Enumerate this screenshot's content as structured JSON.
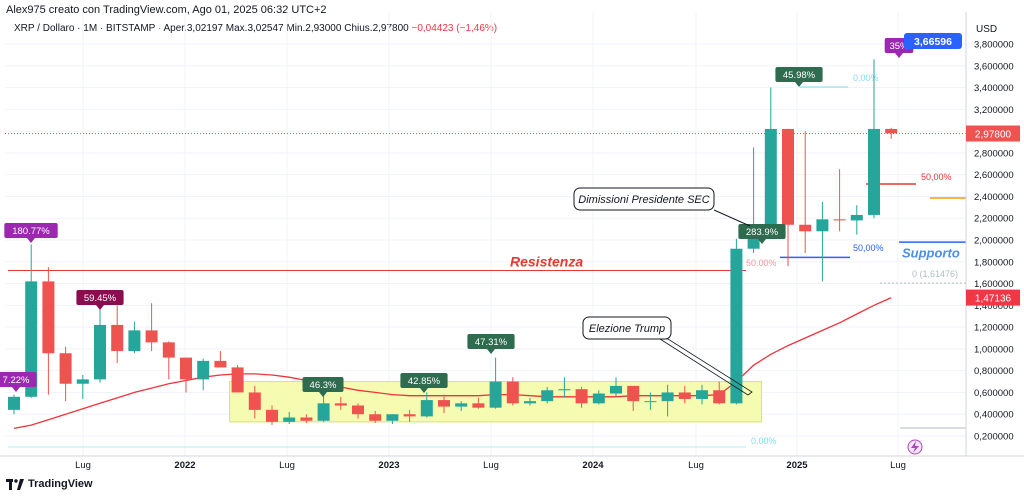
{
  "header": {
    "title": "Alex975 creato con TradingView.com, Ago 01, 2025 06:32 UTC+2",
    "legend": {
      "symbol": "XRP / Dollaro · 1M · BITSTAMP",
      "open_label": "O",
      "open": "Aper.3,02197",
      "high_label": "H",
      "high": "Max.3,02547",
      "low_label": "L",
      "low": "Min.2,93000",
      "close_label": "C",
      "close": "Chius.2,97800",
      "change": "−0,04423 (−1,46%)"
    }
  },
  "footer": {
    "brand": "TradingView"
  },
  "axis": {
    "currency": "USD",
    "y_ticks": [
      "3,800000",
      "3,600000",
      "3,400000",
      "3,200000",
      "3,000000",
      "2,800000",
      "2,600000",
      "2,400000",
      "2,200000",
      "2,000000",
      "1,800000",
      "1,600000",
      "1,400000",
      "1,200000",
      "1,000000",
      "0,800000",
      "0,600000",
      "0,400000",
      "0,200000"
    ],
    "x_ticks": [
      "Lug",
      "2022",
      "Lug",
      "2023",
      "Lug",
      "2024",
      "Lug",
      "2025",
      "Lug"
    ],
    "price_badges": {
      "high": "3,66596",
      "last": "2,97800",
      "ma": "1,47136"
    }
  },
  "colors": {
    "up": "#26a69a",
    "down": "#ef5350",
    "ma": "#f0323c",
    "zone": "#f5fbb0",
    "purple": "#9c27b0",
    "green_label": "#2e6b4f"
  },
  "annotations": {
    "resistance": "Resistenza",
    "support": "Supporto",
    "sec_callout": "Dimissioni Presidente SEC",
    "trump_callout": "Elezione Trump",
    "pct_180": "180.77%",
    "pct_72": "7.22%",
    "pct_59": "59.45%",
    "pct_46": "46.3%",
    "pct_42": "42.85%",
    "pct_47": "47.31%",
    "pct_283": "283.9%",
    "pct_45": "45.98%",
    "pct_35": "35%",
    "fib_0_top": "0.00%",
    "fib_50_a": "50,00%",
    "fib_50_b": "50,00%",
    "fib_50_c": "50.00%",
    "fib_0_mid": "0 (1,61476)",
    "fib_0_bottom": "0.00%"
  },
  "chart_data": {
    "type": "candlestick",
    "y_range": [
      0.1,
      3.9
    ],
    "candles": [
      {
        "o": 0.44,
        "h": 0.58,
        "l": 0.4,
        "c": 0.56
      },
      {
        "o": 0.56,
        "h": 1.96,
        "l": 0.55,
        "c": 1.62
      },
      {
        "o": 1.62,
        "h": 1.75,
        "l": 0.58,
        "c": 0.96
      },
      {
        "o": 0.96,
        "h": 1.02,
        "l": 0.52,
        "c": 0.68
      },
      {
        "o": 0.68,
        "h": 0.76,
        "l": 0.54,
        "c": 0.72
      },
      {
        "o": 0.72,
        "h": 1.36,
        "l": 0.69,
        "c": 1.22
      },
      {
        "o": 1.22,
        "h": 1.4,
        "l": 0.87,
        "c": 0.98
      },
      {
        "o": 0.98,
        "h": 1.25,
        "l": 0.96,
        "c": 1.17
      },
      {
        "o": 1.17,
        "h": 1.42,
        "l": 0.98,
        "c": 1.06
      },
      {
        "o": 1.06,
        "h": 1.07,
        "l": 0.72,
        "c": 0.92
      },
      {
        "o": 0.92,
        "h": 0.92,
        "l": 0.6,
        "c": 0.72
      },
      {
        "o": 0.72,
        "h": 0.91,
        "l": 0.62,
        "c": 0.89
      },
      {
        "o": 0.89,
        "h": 0.98,
        "l": 0.86,
        "c": 0.83
      },
      {
        "o": 0.83,
        "h": 0.85,
        "l": 0.6,
        "c": 0.6
      },
      {
        "o": 0.6,
        "h": 0.66,
        "l": 0.36,
        "c": 0.44
      },
      {
        "o": 0.44,
        "h": 0.48,
        "l": 0.3,
        "c": 0.33
      },
      {
        "o": 0.33,
        "h": 0.42,
        "l": 0.31,
        "c": 0.37
      },
      {
        "o": 0.37,
        "h": 0.4,
        "l": 0.32,
        "c": 0.34
      },
      {
        "o": 0.34,
        "h": 0.58,
        "l": 0.33,
        "c": 0.5
      },
      {
        "o": 0.5,
        "h": 0.56,
        "l": 0.44,
        "c": 0.48
      },
      {
        "o": 0.48,
        "h": 0.5,
        "l": 0.36,
        "c": 0.4
      },
      {
        "o": 0.4,
        "h": 0.43,
        "l": 0.32,
        "c": 0.34
      },
      {
        "o": 0.34,
        "h": 0.4,
        "l": 0.31,
        "c": 0.4
      },
      {
        "o": 0.4,
        "h": 0.44,
        "l": 0.33,
        "c": 0.38
      },
      {
        "o": 0.38,
        "h": 0.6,
        "l": 0.37,
        "c": 0.53
      },
      {
        "o": 0.53,
        "h": 0.58,
        "l": 0.41,
        "c": 0.47
      },
      {
        "o": 0.47,
        "h": 0.52,
        "l": 0.43,
        "c": 0.5
      },
      {
        "o": 0.5,
        "h": 0.55,
        "l": 0.45,
        "c": 0.46
      },
      {
        "o": 0.46,
        "h": 0.92,
        "l": 0.45,
        "c": 0.7
      },
      {
        "o": 0.7,
        "h": 0.74,
        "l": 0.48,
        "c": 0.5
      },
      {
        "o": 0.5,
        "h": 0.55,
        "l": 0.48,
        "c": 0.52
      },
      {
        "o": 0.52,
        "h": 0.65,
        "l": 0.5,
        "c": 0.62
      },
      {
        "o": 0.62,
        "h": 0.74,
        "l": 0.55,
        "c": 0.63
      },
      {
        "o": 0.63,
        "h": 0.65,
        "l": 0.46,
        "c": 0.5
      },
      {
        "o": 0.5,
        "h": 0.62,
        "l": 0.49,
        "c": 0.59
      },
      {
        "o": 0.59,
        "h": 0.74,
        "l": 0.56,
        "c": 0.66
      },
      {
        "o": 0.66,
        "h": 0.66,
        "l": 0.43,
        "c": 0.52
      },
      {
        "o": 0.52,
        "h": 0.6,
        "l": 0.44,
        "c": 0.52
      },
      {
        "o": 0.52,
        "h": 0.67,
        "l": 0.38,
        "c": 0.6
      },
      {
        "o": 0.6,
        "h": 0.66,
        "l": 0.5,
        "c": 0.54
      },
      {
        "o": 0.54,
        "h": 0.67,
        "l": 0.49,
        "c": 0.62
      },
      {
        "o": 0.62,
        "h": 0.7,
        "l": 0.49,
        "c": 0.5
      },
      {
        "o": 0.5,
        "h": 2.01,
        "l": 0.49,
        "c": 1.92
      },
      {
        "o": 1.92,
        "h": 2.85,
        "l": 1.88,
        "c": 2.05
      },
      {
        "o": 2.05,
        "h": 3.4,
        "l": 2.02,
        "c": 3.02
      },
      {
        "o": 3.02,
        "h": 3.02,
        "l": 1.76,
        "c": 2.14
      },
      {
        "o": 2.14,
        "h": 3.0,
        "l": 1.88,
        "c": 2.08
      },
      {
        "o": 2.08,
        "h": 2.35,
        "l": 1.62,
        "c": 2.19
      },
      {
        "o": 2.19,
        "h": 2.65,
        "l": 2.08,
        "c": 2.18
      },
      {
        "o": 2.18,
        "h": 2.32,
        "l": 2.05,
        "c": 2.23
      },
      {
        "o": 2.23,
        "h": 3.66,
        "l": 2.2,
        "c": 3.02
      },
      {
        "o": 3.02,
        "h": 3.03,
        "l": 2.93,
        "c": 2.98
      }
    ],
    "ma": [
      0.27,
      0.3,
      0.35,
      0.4,
      0.45,
      0.5,
      0.55,
      0.6,
      0.64,
      0.68,
      0.71,
      0.74,
      0.76,
      0.77,
      0.77,
      0.76,
      0.74,
      0.71,
      0.68,
      0.65,
      0.62,
      0.6,
      0.58,
      0.57,
      0.57,
      0.57,
      0.57,
      0.57,
      0.58,
      0.58,
      0.57,
      0.56,
      0.56,
      0.56,
      0.56,
      0.56,
      0.57,
      0.57,
      0.57,
      0.57,
      0.57,
      0.58,
      0.7,
      0.85,
      0.95,
      1.03,
      1.1,
      1.17,
      1.24,
      1.32,
      1.4,
      1.47
    ],
    "zone": {
      "start_index": 13,
      "end_index": 43,
      "low": 0.33,
      "high": 0.7
    },
    "levels": {
      "resistance": 1.72,
      "support": 1.98,
      "support_short": 1.84
    }
  }
}
